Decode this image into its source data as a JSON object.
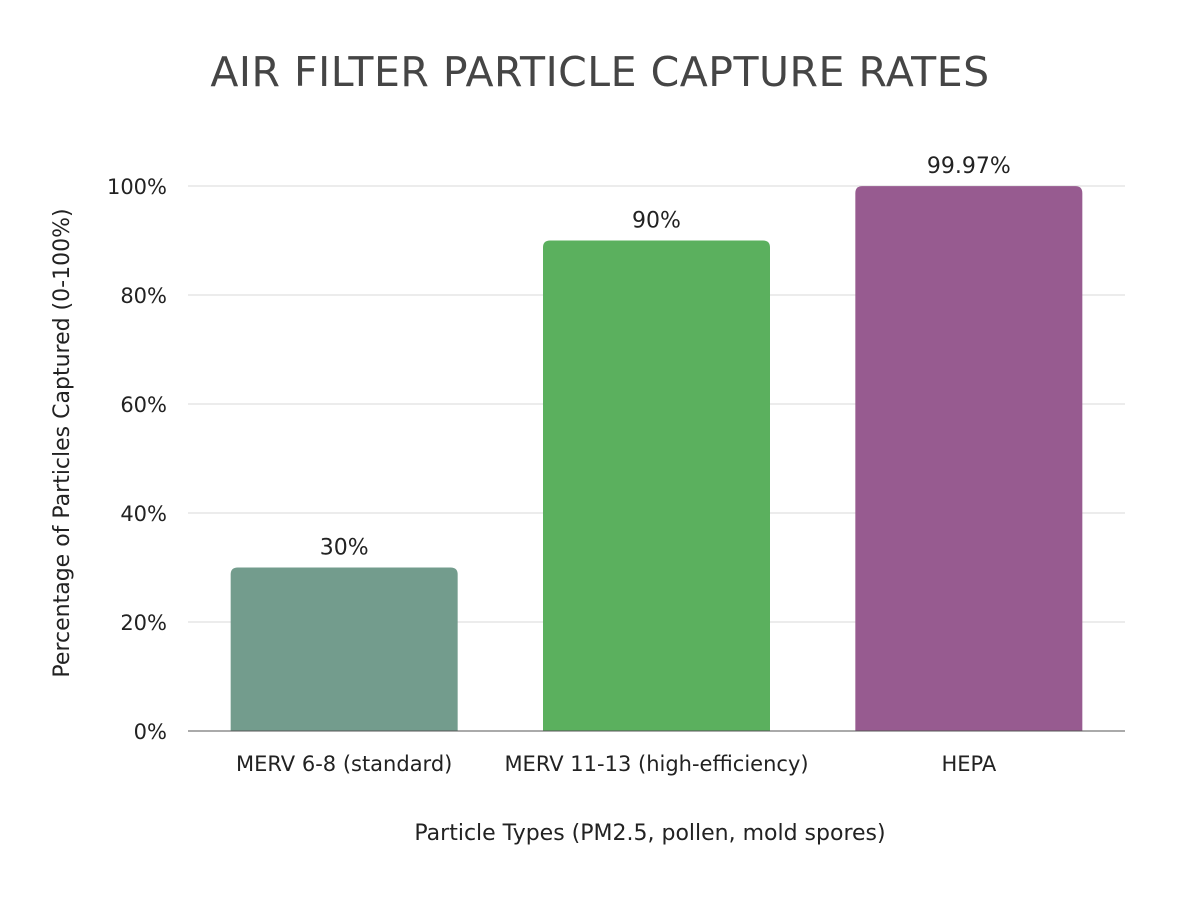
{
  "chart_data": {
    "type": "bar",
    "title": "AIR FILTER PARTICLE CAPTURE RATES",
    "xlabel": "Particle Types (PM2.5, pollen, mold spores)",
    "ylabel": "Percentage of Particles Captured (0-100%)",
    "ylim": [
      0,
      100
    ],
    "yticks": [
      0,
      20,
      40,
      60,
      80,
      100
    ],
    "ytick_labels": [
      "0%",
      "20%",
      "40%",
      "60%",
      "80%",
      "100%"
    ],
    "grid": true,
    "categories": [
      "MERV 6-8 (standard)",
      "MERV 11-13 (high-efficiency)",
      "HEPA"
    ],
    "values": [
      30,
      90,
      99.97
    ],
    "data_labels": [
      "30%",
      "90%",
      "99.97%"
    ],
    "colors": [
      "#739c8d",
      "#5bb05e",
      "#975b90"
    ]
  }
}
